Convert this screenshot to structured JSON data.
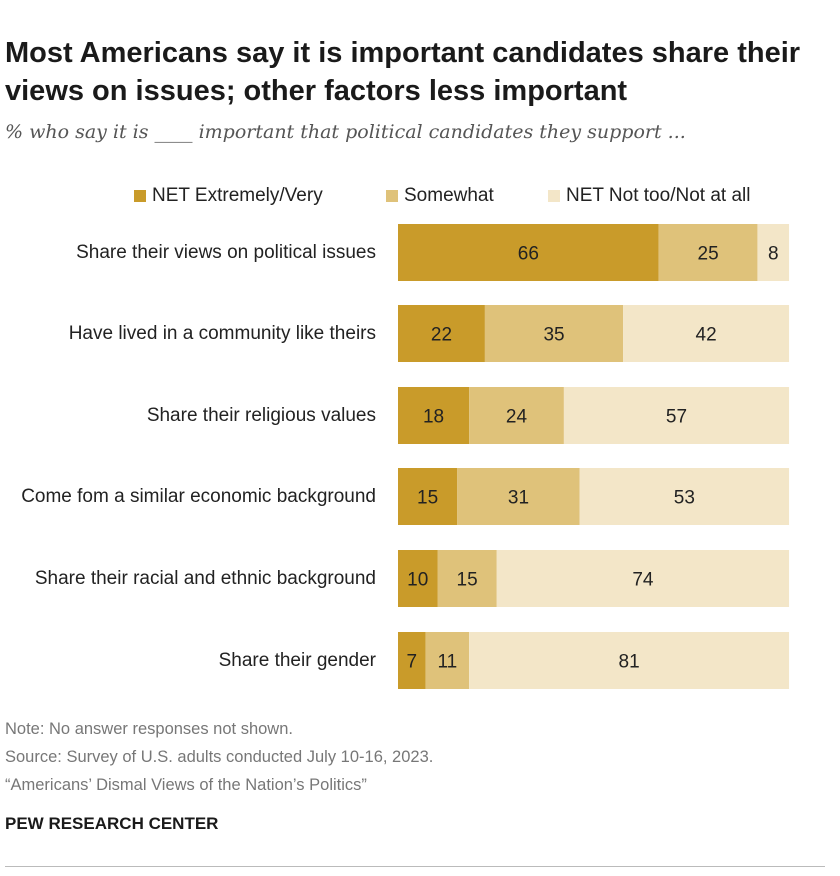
{
  "title": "Most Americans say it is important candidates share their views on issues; other factors less important",
  "subtitle": "% who say it is ____ important that political candidates they support ...",
  "chart_data": {
    "type": "bar",
    "orientation": "horizontal",
    "stacked": true,
    "categories": [
      "Share their views on political issues",
      "Have lived in a community like theirs",
      "Share their religious values",
      "Come fom a similar economic background",
      "Share their racial and ethnic background",
      "Share their gender"
    ],
    "series": [
      {
        "name": "NET Extremely/Very",
        "color": "#c99b2a",
        "values": [
          66,
          22,
          18,
          15,
          10,
          7
        ]
      },
      {
        "name": "Somewhat",
        "color": "#dfc27a",
        "values": [
          25,
          35,
          24,
          31,
          15,
          11
        ]
      },
      {
        "name": "NET Not too/Not at all",
        "color": "#f3e6c8",
        "values": [
          8,
          42,
          57,
          53,
          74,
          81
        ]
      }
    ],
    "xlim": [
      0,
      100
    ],
    "data_labels": true,
    "legend_position": "top"
  },
  "notes": {
    "note": "Note: No answer responses not shown.",
    "source": "Source: Survey of U.S. adults conducted July 10-16, 2023.",
    "report": "“Americans’ Dismal Views of the Nation’s Politics”"
  },
  "organization": "PEW RESEARCH CENTER"
}
